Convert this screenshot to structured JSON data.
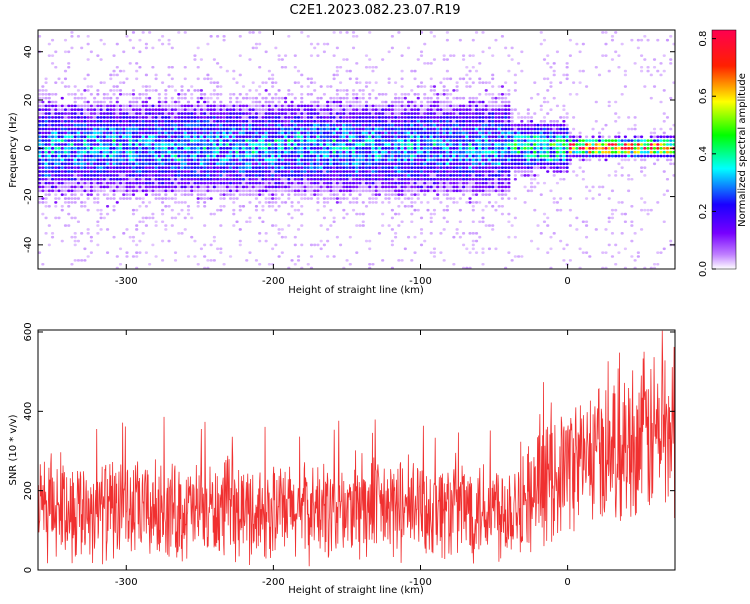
{
  "title": "C2E1.2023.082.23.07.R19",
  "chart_data": [
    {
      "type": "heatmap",
      "xlabel": "Height of straight line (km)",
      "ylabel": "Frequency (Hz)",
      "xlim": [
        -360,
        73
      ],
      "ylim": [
        -50,
        49
      ],
      "xticks": [
        -300,
        -200,
        -100,
        0
      ],
      "yticks": [
        -40,
        -20,
        0,
        20,
        40
      ],
      "grid": false,
      "colorbar": {
        "label": "Normalized spectral amplitude",
        "range": [
          0.0,
          0.83
        ],
        "ticks": [
          0.0,
          0.2,
          0.4,
          0.6,
          0.8
        ],
        "colormap": [
          "#ffffff",
          "#8800ff",
          "#2200ff",
          "#00ffff",
          "#00ff00",
          "#ffff00",
          "#ff0000",
          "#ff0055"
        ]
      },
      "bands": [
        {
          "x": [
            -360,
            -40
          ],
          "freq_center": 0,
          "freq_halfwidth": 15,
          "peak_amplitude": 0.3
        },
        {
          "x": [
            -40,
            0
          ],
          "freq_center": 0,
          "freq_halfwidth": 8,
          "peak_amplitude": 0.4
        },
        {
          "x": [
            0,
            73
          ],
          "freq_center": 0,
          "freq_halfwidth": 3,
          "peak_amplitude": 0.8
        }
      ]
    },
    {
      "type": "line",
      "xlabel": "Height of straight line (km)",
      "ylabel": "SNR (10 * v/v)",
      "xlim": [
        -360,
        73
      ],
      "ylim": [
        0,
        605
      ],
      "xticks": [
        -300,
        -200,
        -100,
        0
      ],
      "yticks": [
        0,
        200,
        400,
        600
      ],
      "grid": false,
      "series": [
        {
          "color": "#f03030",
          "envelope": [
            {
              "x": -360,
              "low": 20,
              "high": 300
            },
            {
              "x": -300,
              "low": 20,
              "high": 280
            },
            {
              "x": -200,
              "low": 20,
              "high": 270
            },
            {
              "x": -100,
              "low": 20,
              "high": 290
            },
            {
              "x": -40,
              "low": 20,
              "high": 300
            },
            {
              "x": -20,
              "low": 50,
              "high": 350
            },
            {
              "x": 0,
              "low": 100,
              "high": 430
            },
            {
              "x": 40,
              "low": 120,
              "high": 520
            },
            {
              "x": 73,
              "low": 120,
              "high": 600
            }
          ]
        }
      ]
    }
  ]
}
